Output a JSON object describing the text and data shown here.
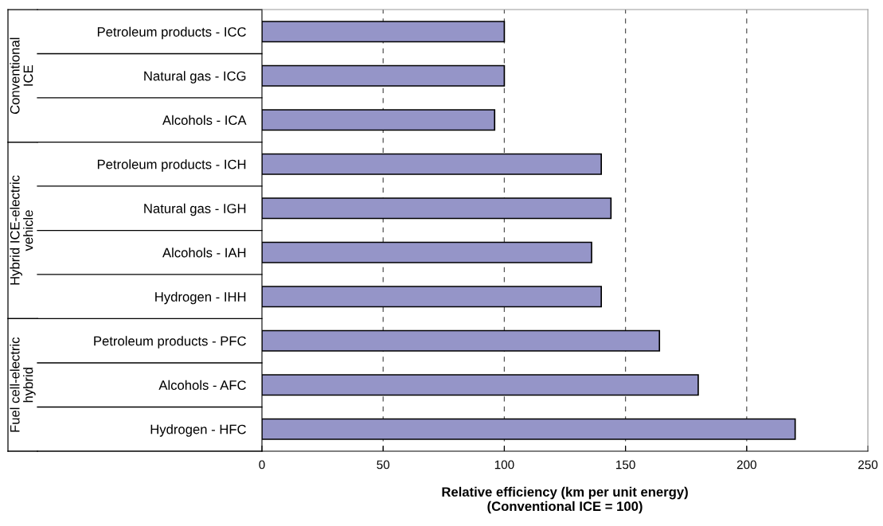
{
  "chart_data": {
    "type": "bar",
    "orientation": "horizontal",
    "categories": [
      "Petroleum products - ICC",
      "Natural gas - ICG",
      "Alcohols - ICA",
      "Petroleum products - ICH",
      "Natural gas - IGH",
      "Alcohols - IAH",
      "Hydrogen - IHH",
      "Petroleum products - PFC",
      "Alcohols - AFC",
      "Hydrogen - HFC"
    ],
    "values": [
      100,
      100,
      96,
      140,
      144,
      136,
      140,
      164,
      180,
      220
    ],
    "color": "#9595c8",
    "xlim": [
      0,
      250
    ],
    "xticks": [
      0,
      50,
      100,
      150,
      200,
      250
    ],
    "xlabel": "Relative efficiency (km per unit energy)\n(Conventional ICE = 100)",
    "grid": "x",
    "annotations": [
      "Conventional\nICE",
      "Hybrid ICE-electric\nvehicle",
      "Fuel cell-electric\nhybrid"
    ]
  }
}
